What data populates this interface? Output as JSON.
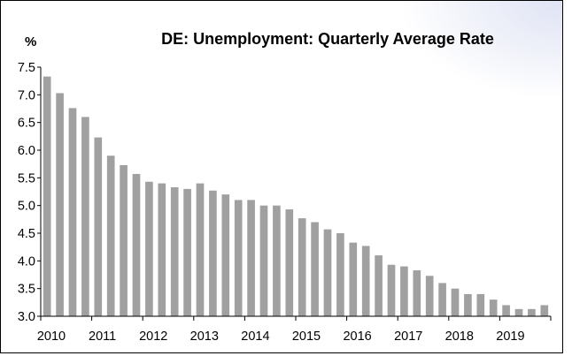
{
  "chart_data": {
    "type": "bar",
    "title": "DE: Unemployment: Quarterly Average Rate",
    "ylabel": "%",
    "xlabel": "",
    "ylim": [
      3.0,
      7.5
    ],
    "yticks": [
      "7.5",
      "7.0",
      "6.5",
      "6.0",
      "5.5",
      "5.0",
      "4.5",
      "4.0",
      "3.5",
      "3.0"
    ],
    "year_labels": [
      "2010",
      "2011",
      "2012",
      "2013",
      "2014",
      "2015",
      "2016",
      "2017",
      "2018",
      "2019"
    ],
    "categories": [
      "2010 Q1",
      "2010 Q2",
      "2010 Q3",
      "2010 Q4",
      "2011 Q1",
      "2011 Q2",
      "2011 Q3",
      "2011 Q4",
      "2012 Q1",
      "2012 Q2",
      "2012 Q3",
      "2012 Q4",
      "2013 Q1",
      "2013 Q2",
      "2013 Q3",
      "2013 Q4",
      "2014 Q1",
      "2014 Q2",
      "2014 Q3",
      "2014 Q4",
      "2015 Q1",
      "2015 Q2",
      "2015 Q3",
      "2015 Q4",
      "2016 Q1",
      "2016 Q2",
      "2016 Q3",
      "2016 Q4",
      "2017 Q1",
      "2017 Q2",
      "2017 Q3",
      "2017 Q4",
      "2018 Q1",
      "2018 Q2",
      "2018 Q3",
      "2018 Q4",
      "2019 Q1",
      "2019 Q2",
      "2019 Q3",
      "2019 Q4"
    ],
    "values": [
      7.33,
      7.03,
      6.76,
      6.6,
      6.23,
      5.9,
      5.73,
      5.57,
      5.43,
      5.4,
      5.33,
      5.3,
      5.4,
      5.27,
      5.2,
      5.1,
      5.1,
      5.0,
      5.0,
      4.93,
      4.77,
      4.7,
      4.57,
      4.5,
      4.33,
      4.27,
      4.1,
      3.93,
      3.9,
      3.83,
      3.73,
      3.6,
      3.5,
      3.4,
      3.4,
      3.3,
      3.2,
      3.13,
      3.13,
      3.2
    ],
    "bar_color": "#a0a0a0",
    "grid": false,
    "legend": "none"
  }
}
